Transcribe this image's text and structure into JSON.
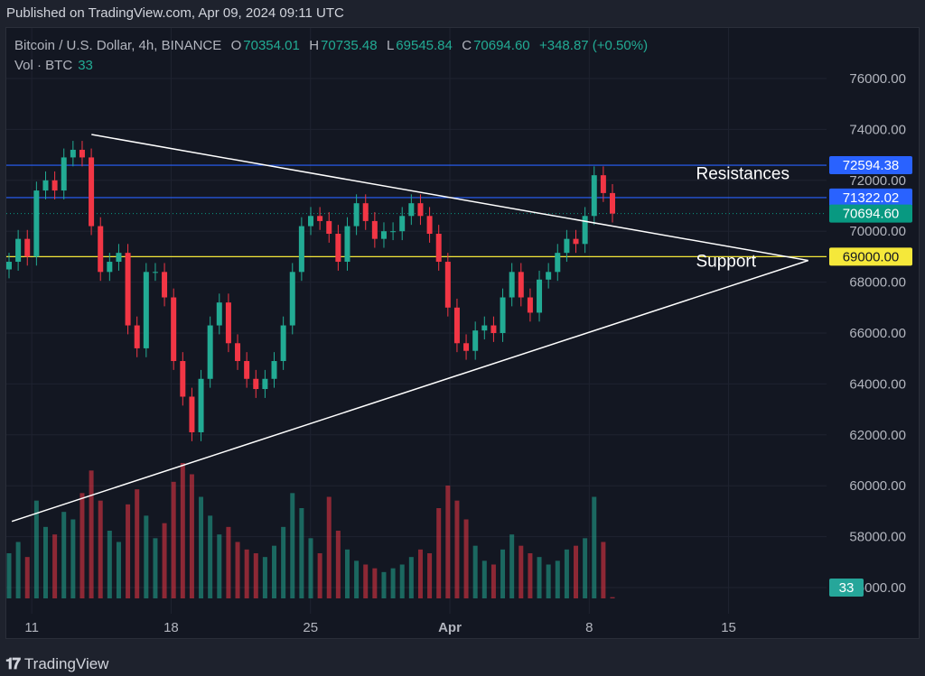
{
  "published": "Published on TradingView.com, Apr 09, 2024 09:11 UTC",
  "legend": {
    "symbol": "Bitcoin / U.S. Dollar, 4h, BINANCE",
    "o_label": "O",
    "o": "70354.01",
    "h_label": "H",
    "h": "70735.48",
    "l_label": "L",
    "l": "69545.84",
    "c_label": "C",
    "c": "70694.60",
    "change": "+348.87 (+0.50%)",
    "vol_label": "Vol · BTC",
    "vol": "33"
  },
  "brand": {
    "logo_mark": "TV",
    "name": "TradingView"
  },
  "colors": {
    "up": "#22ab94",
    "down": "#f23645",
    "resistance": "#2962ff",
    "support": "#f5e83a",
    "trendline": "#ffffff",
    "last_price": "#089981"
  },
  "chart_data": {
    "type": "candlestick",
    "y_axis": {
      "min": 56000,
      "max": 76000,
      "ticks": [
        "76000.00",
        "74000.00",
        "72000.00",
        "70000.00",
        "68000.00",
        "66000.00",
        "64000.00",
        "62000.00",
        "60000.00",
        "58000.00",
        "56000.00"
      ]
    },
    "x_axis": {
      "ticks": [
        {
          "label": "11",
          "date": "2024-03-11"
        },
        {
          "label": "18",
          "date": "2024-03-18"
        },
        {
          "label": "25",
          "date": "2024-03-25"
        },
        {
          "label": "Apr",
          "date": "2024-04-01",
          "bold": true
        },
        {
          "label": "8",
          "date": "2024-04-08"
        },
        {
          "label": "15",
          "date": "2024-04-15"
        }
      ]
    },
    "closes": [
      68800,
      69700,
      69000,
      71600,
      72000,
      71600,
      72900,
      73200,
      72900,
      70200,
      68400,
      68800,
      69150,
      66300,
      65400,
      68400,
      68400,
      67400,
      64900,
      63500,
      62100,
      64200,
      66300,
      67200,
      65600,
      64900,
      64200,
      63800,
      64200,
      64900,
      66300,
      68400,
      70200,
      70600,
      70400,
      69900,
      68800,
      70200,
      71100,
      70400,
      69700,
      70000,
      70000,
      70600,
      71100,
      70600,
      69900,
      68800,
      67000,
      65600,
      65300,
      66100,
      66300,
      66000,
      67400,
      68400,
      67400,
      66800,
      68100,
      68400,
      69150,
      69700,
      69500,
      70600,
      72200,
      71500,
      70694.6
    ],
    "volumes": [
      1200,
      1500,
      1100,
      2600,
      1900,
      1700,
      2300,
      2100,
      2800,
      3400,
      2600,
      1800,
      1500,
      2500,
      2900,
      2200,
      1600,
      2000,
      3100,
      3600,
      3300,
      2700,
      2200,
      1700,
      1900,
      1500,
      1300,
      1200,
      1100,
      1400,
      1900,
      2800,
      2400,
      1600,
      1200,
      2700,
      1800,
      1300,
      1000,
      900,
      800,
      700,
      800,
      900,
      1100,
      1300,
      1200,
      2400,
      3000,
      2600,
      2100,
      1400,
      1000,
      900,
      1300,
      1700,
      1400,
      1200,
      1100,
      900,
      1000,
      1300,
      1400,
      1600,
      2700,
      1500,
      33
    ],
    "horizontal_levels": [
      {
        "label": "72594.38",
        "price": 72594.38,
        "kind": "resistance"
      },
      {
        "label": "71322.02",
        "price": 71322.02,
        "kind": "resistance"
      },
      {
        "label": "69000.00",
        "price": 69000,
        "kind": "support"
      }
    ],
    "last_price": {
      "label": "70694.60",
      "price": 70694.6
    },
    "volume_badge": "33",
    "trendlines": [
      {
        "from": [
          "2024-03-14",
          73800
        ],
        "to": [
          "2024-04-19",
          68850
        ]
      },
      {
        "from": [
          "2024-03-10",
          58600
        ],
        "to": [
          "2024-04-19",
          68850
        ]
      }
    ],
    "annotations": [
      {
        "text": "Resistances",
        "date": "2024-04-13",
        "price": 72050
      },
      {
        "text": "Support",
        "date": "2024-04-13",
        "price": 68600
      }
    ]
  }
}
